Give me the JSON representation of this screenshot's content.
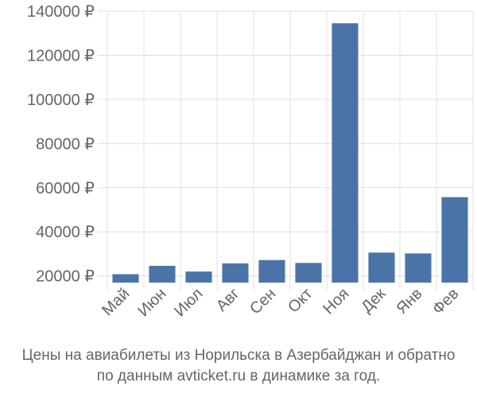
{
  "chart_data": {
    "type": "bar",
    "categories": [
      "Май",
      "Июн",
      "Июл",
      "Авг",
      "Сен",
      "Окт",
      "Ноя",
      "Дек",
      "Янв",
      "Фев"
    ],
    "values": [
      20800,
      24600,
      22000,
      25700,
      27200,
      25900,
      134500,
      30600,
      30200,
      55700
    ],
    "ylim": [
      17000,
      140000
    ],
    "yticks": [
      20000,
      40000,
      60000,
      80000,
      100000,
      120000,
      140000
    ],
    "ytick_labels": [
      "20000 ₽",
      "40000 ₽",
      "60000 ₽",
      "80000 ₽",
      "100000 ₽",
      "120000 ₽",
      "140000 ₽"
    ],
    "grid": true,
    "bar_color": "#4a74a8",
    "grid_color": "#e0e0e0"
  },
  "caption": {
    "line1": "Цены на авиабилеты из Норильска в Азербайджан и обратно",
    "line2": "по данным avticket.ru в динамике за год."
  }
}
